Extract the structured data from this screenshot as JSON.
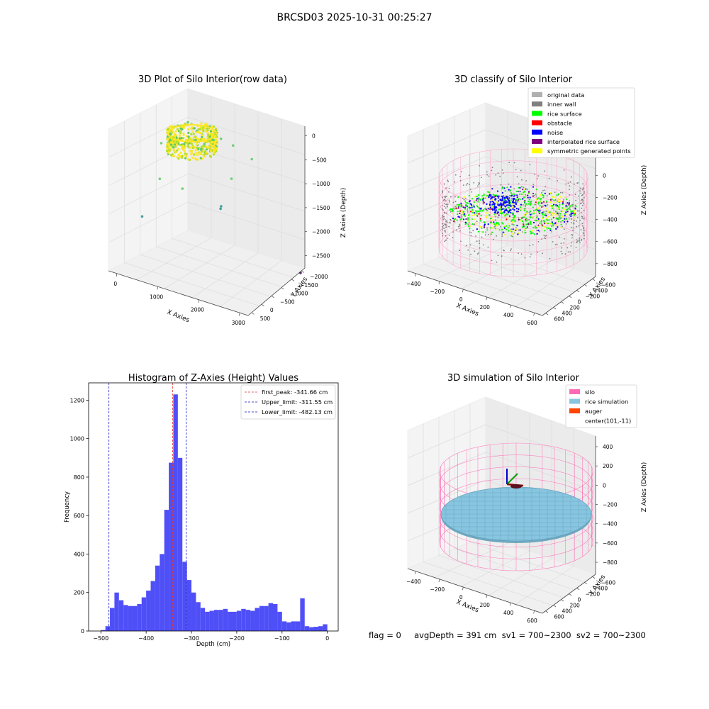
{
  "figure": {
    "suptitle": "BRCSD03 2025-10-31 00:25:27",
    "footer": "flag = 0     avgDepth = 391 cm  sv1 = 700~2300  sv2 = 700~2300"
  },
  "chart_data": [
    {
      "type": "scatter",
      "projection": "3d",
      "title": "3D Plot of Silo Interior(row data)",
      "xlabel": "X Axies",
      "ylabel": "Y Axies",
      "zlabel": "Z Axies (Depth)",
      "x_ticks": [
        "0",
        "1000",
        "2000",
        "3000"
      ],
      "y_ticks": [
        "500",
        "0",
        "−500",
        "−1000",
        "−1500",
        "−2000"
      ],
      "z_ticks": [
        "0",
        "−500",
        "−1000",
        "−1500",
        "−2000",
        "−2500"
      ],
      "xlim": [
        -500,
        3700
      ],
      "ylim": [
        -2200,
        700
      ],
      "zlim": [
        -2800,
        100
      ],
      "colormap": [
        "#440154",
        "#21918c",
        "#5ec962",
        "#fde725"
      ],
      "outlier_points": [
        {
          "x": 100,
          "y": -1000,
          "z": -400
        },
        {
          "x": 300,
          "y": -800,
          "z": -500
        },
        {
          "x": 800,
          "y": -600,
          "z": -300
        },
        {
          "x": 1400,
          "y": -400,
          "z": -200
        },
        {
          "x": 1600,
          "y": -200,
          "z": -350
        },
        {
          "x": 2000,
          "y": 0,
          "z": -600
        },
        {
          "x": 1800,
          "y": -500,
          "z": -900
        },
        {
          "x": 300,
          "y": -1300,
          "z": -1000
        },
        {
          "x": 900,
          "y": -1200,
          "z": -1100
        },
        {
          "x": 1800,
          "y": -900,
          "z": -1400
        },
        {
          "x": 1900,
          "y": -1000,
          "z": -1300
        },
        {
          "x": 100,
          "y": -1700,
          "z": -1700
        },
        {
          "x": 3300,
          "y": 200,
          "z": -2700
        }
      ]
    },
    {
      "type": "scatter",
      "projection": "3d",
      "title": "3D classify of Silo Interior",
      "xlabel": "X Axies",
      "ylabel": "Y Axies",
      "zlabel": "Z Axies (Depth)",
      "x_ticks": [
        "−400",
        "−200",
        "0",
        "200",
        "400",
        "600"
      ],
      "y_ticks": [
        "600",
        "400",
        "200",
        "0",
        "−200",
        "−400",
        "−600"
      ],
      "z_ticks": [
        "200",
        "0",
        "−200",
        "−400",
        "−600",
        "−800"
      ],
      "legend_position": "upper-right",
      "legend": [
        {
          "name": "original data",
          "color": "#b0b0b0"
        },
        {
          "name": "inner wall",
          "color": "#808080"
        },
        {
          "name": "rice surface",
          "color": "#00ff00"
        },
        {
          "name": "obstacle",
          "color": "#ff0000"
        },
        {
          "name": "noise",
          "color": "#0000ff"
        },
        {
          "name": "interpolated rice surface",
          "color": "#800080"
        },
        {
          "name": "symmetric generated points",
          "color": "#ffff00"
        }
      ],
      "silo_color": "#ff9ec8"
    },
    {
      "type": "bar",
      "title": "Histogram of Z-Axies (Height) Values",
      "xlabel": "Depth (cm)",
      "ylabel": "Frequency",
      "xlim": [
        -527,
        24
      ],
      "ylim": [
        0,
        1290
      ],
      "x_ticks": [
        -500,
        -400,
        -300,
        -200,
        -100,
        0
      ],
      "x_tick_labels": [
        "−500",
        "−400",
        "−300",
        "−200",
        "−100",
        "0"
      ],
      "y_ticks": [
        0,
        200,
        400,
        600,
        800,
        1000,
        1200
      ],
      "y_tick_labels": [
        "0",
        "200",
        "400",
        "600",
        "800",
        "1000",
        "1200"
      ],
      "bin_start": -500,
      "bin_width": 10,
      "values": [
        5,
        25,
        120,
        200,
        160,
        135,
        130,
        130,
        140,
        175,
        210,
        260,
        340,
        400,
        630,
        875,
        1230,
        900,
        360,
        265,
        200,
        150,
        120,
        100,
        105,
        110,
        110,
        115,
        100,
        100,
        105,
        115,
        110,
        105,
        120,
        130,
        130,
        145,
        140,
        100,
        50,
        45,
        50,
        50,
        170,
        25,
        20,
        22,
        25,
        35
      ],
      "bar_color": "#4f4ff8",
      "lines": [
        {
          "name": "first_peak: -341.66 cm",
          "x": -341.66,
          "color": "#e3342f"
        },
        {
          "name": "Upper_limit: -311.55 cm",
          "x": -311.55,
          "color": "#1515c8"
        },
        {
          "name": "Lower_limit: -482.13 cm",
          "x": -482.13,
          "color": "#1515c8"
        }
      ],
      "legend_position": "upper-right"
    },
    {
      "type": "surface",
      "projection": "3d",
      "title": "3D simulation of Silo Interior",
      "xlabel": "X Axies",
      "ylabel": "Y Axies",
      "zlabel": "Z Axies (Depth)",
      "x_ticks": [
        "−400",
        "−200",
        "0",
        "200",
        "400",
        "600"
      ],
      "y_ticks": [
        "600",
        "400",
        "200",
        "0",
        "−200",
        "−400",
        "−600"
      ],
      "z_ticks": [
        "400",
        "200",
        "0",
        "−200",
        "−400",
        "−600",
        "−800"
      ],
      "legend_position": "upper-right",
      "legend": [
        {
          "name": "silo",
          "color": "#ff69b4"
        },
        {
          "name": "rice simulation",
          "color": "#87c5e0"
        },
        {
          "name": "auger",
          "color": "#ff4500"
        },
        {
          "name": "center(101,-11)",
          "color": ""
        }
      ],
      "silo_color": "#ff69b4",
      "surface_color": "#87c5e0"
    }
  ]
}
